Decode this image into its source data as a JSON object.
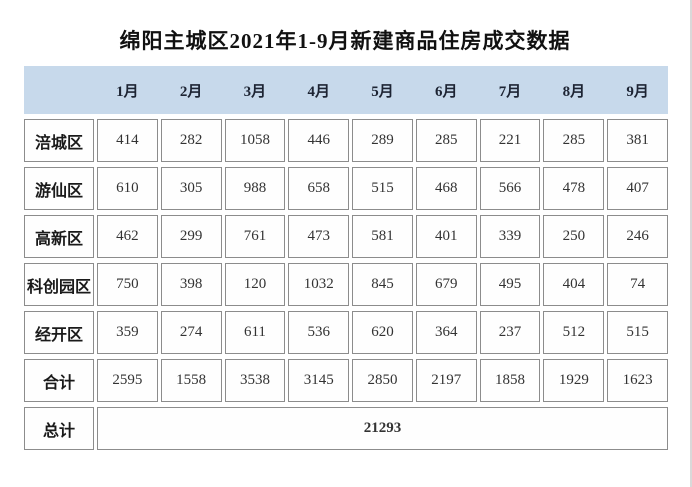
{
  "title": "绵阳主城区2021年1-9月新建商品住房成交数据",
  "colors": {
    "header_bg": "#c7d9eb",
    "cell_border": "#8c8c8c",
    "title_text": "#111111",
    "cell_text": "#333333"
  },
  "table": {
    "months": [
      "1月",
      "2月",
      "3月",
      "4月",
      "5月",
      "6月",
      "7月",
      "8月",
      "9月"
    ],
    "rows": [
      {
        "label": "涪城区",
        "values": [
          "414",
          "282",
          "1058",
          "446",
          "289",
          "285",
          "221",
          "285",
          "381"
        ]
      },
      {
        "label": "游仙区",
        "values": [
          "610",
          "305",
          "988",
          "658",
          "515",
          "468",
          "566",
          "478",
          "407"
        ]
      },
      {
        "label": "高新区",
        "values": [
          "462",
          "299",
          "761",
          "473",
          "581",
          "401",
          "339",
          "250",
          "246"
        ]
      },
      {
        "label": "科创园区",
        "values": [
          "750",
          "398",
          "120",
          "1032",
          "845",
          "679",
          "495",
          "404",
          "74"
        ]
      },
      {
        "label": "经开区",
        "values": [
          "359",
          "274",
          "611",
          "536",
          "620",
          "364",
          "237",
          "512",
          "515"
        ]
      },
      {
        "label": "合计",
        "values": [
          "2595",
          "1558",
          "3538",
          "3145",
          "2850",
          "2197",
          "1858",
          "1929",
          "1623"
        ]
      }
    ],
    "grand_total": {
      "label": "总计",
      "value": "21293"
    }
  },
  "chart_data": {
    "type": "table",
    "title": "绵阳主城区2021年1-9月新建商品住房成交数据",
    "categories": [
      "1月",
      "2月",
      "3月",
      "4月",
      "5月",
      "6月",
      "7月",
      "8月",
      "9月"
    ],
    "series": [
      {
        "name": "涪城区",
        "values": [
          414,
          282,
          1058,
          446,
          289,
          285,
          221,
          285,
          381
        ]
      },
      {
        "name": "游仙区",
        "values": [
          610,
          305,
          988,
          658,
          515,
          468,
          566,
          478,
          407
        ]
      },
      {
        "name": "高新区",
        "values": [
          462,
          299,
          761,
          473,
          581,
          401,
          339,
          250,
          246
        ]
      },
      {
        "name": "科创园区",
        "values": [
          750,
          398,
          120,
          1032,
          845,
          679,
          495,
          404,
          74
        ]
      },
      {
        "name": "经开区",
        "values": [
          359,
          274,
          611,
          536,
          620,
          364,
          237,
          512,
          515
        ]
      },
      {
        "name": "合计",
        "values": [
          2595,
          1558,
          3538,
          3145,
          2850,
          2197,
          1858,
          1929,
          1623
        ]
      }
    ],
    "grand_total": 21293,
    "layout": "header row of months with light-blue background; bordered white cells; last row 总计 is a single merged cell"
  }
}
